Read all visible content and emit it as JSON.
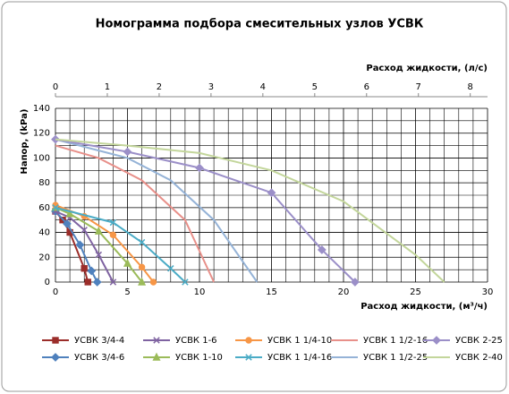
{
  "chart_data": {
    "type": "line",
    "title": "Номограмма подбора смесительных узлов УСВК",
    "x_label": "Расход жидкости, (м³/ч)",
    "x2_label": "Расход жидкости, (л/с)",
    "y_label": "Напор, (kPa)",
    "xlim": [
      0,
      30
    ],
    "xticks": [
      0,
      5,
      10,
      15,
      20,
      25,
      30
    ],
    "x2lim": [
      0,
      8.333
    ],
    "x2ticks": [
      0,
      1,
      2,
      3,
      4,
      5,
      6,
      7,
      8
    ],
    "ylim": [
      0,
      140
    ],
    "yticks": [
      0,
      20,
      40,
      60,
      80,
      100,
      120,
      140
    ],
    "grid": true,
    "legend": "bottom",
    "series": [
      {
        "name": "УСВК 3/4-4",
        "color": "#9b2d2a",
        "marker": "square",
        "x": [
          0,
          0.5,
          1,
          2,
          2.25
        ],
        "values": [
          57,
          50,
          40,
          11,
          0
        ]
      },
      {
        "name": "УСВК 3/4-6",
        "color": "#4f81bd",
        "marker": "diamond",
        "x": [
          0,
          0.8,
          1.7,
          2.5,
          2.9
        ],
        "values": [
          57,
          47,
          30,
          9,
          0
        ]
      },
      {
        "name": "УСВК 1-6",
        "color": "#7f63a1",
        "marker": "x",
        "x": [
          0,
          1,
          2,
          3,
          4
        ],
        "values": [
          57,
          52,
          42,
          22,
          0
        ]
      },
      {
        "name": "УСВК 1-10",
        "color": "#9bbb59",
        "marker": "triangle",
        "x": [
          0,
          1,
          3,
          5,
          6
        ],
        "values": [
          60,
          55,
          41,
          15,
          0
        ]
      },
      {
        "name": "УСВК 1 1/4-10",
        "color": "#f79646",
        "marker": "circle",
        "x": [
          0,
          2,
          4,
          6,
          6.8
        ],
        "values": [
          62,
          53,
          38,
          12,
          0
        ]
      },
      {
        "name": "УСВК 1 1/4-16",
        "color": "#4bacc6",
        "marker": "x",
        "x": [
          0,
          4,
          6,
          8,
          9
        ],
        "values": [
          60,
          48,
          32,
          11,
          0
        ]
      },
      {
        "name": "УСВК 1 1/2-16",
        "color": "#e8908a",
        "marker": "none",
        "x": [
          0,
          3,
          6,
          9,
          11
        ],
        "values": [
          110,
          100,
          82,
          50,
          0
        ]
      },
      {
        "name": "УСВК 1 1/2-25",
        "color": "#95b3d7",
        "marker": "none",
        "x": [
          0,
          5,
          8,
          11,
          14
        ],
        "values": [
          115,
          100,
          82,
          50,
          0
        ]
      },
      {
        "name": "УСВК 2-25",
        "color": "#9b8fc8",
        "marker": "diamond",
        "x": [
          0,
          5,
          10,
          15,
          18.5,
          20.8
        ],
        "values": [
          115,
          105,
          92,
          72,
          26,
          0
        ]
      },
      {
        "name": "УСВК 2-40",
        "color": "#c3d69b",
        "marker": "none",
        "x": [
          0,
          5,
          10,
          15,
          20,
          25,
          27
        ],
        "values": [
          115,
          110,
          104,
          90,
          65,
          22,
          0
        ]
      }
    ]
  }
}
